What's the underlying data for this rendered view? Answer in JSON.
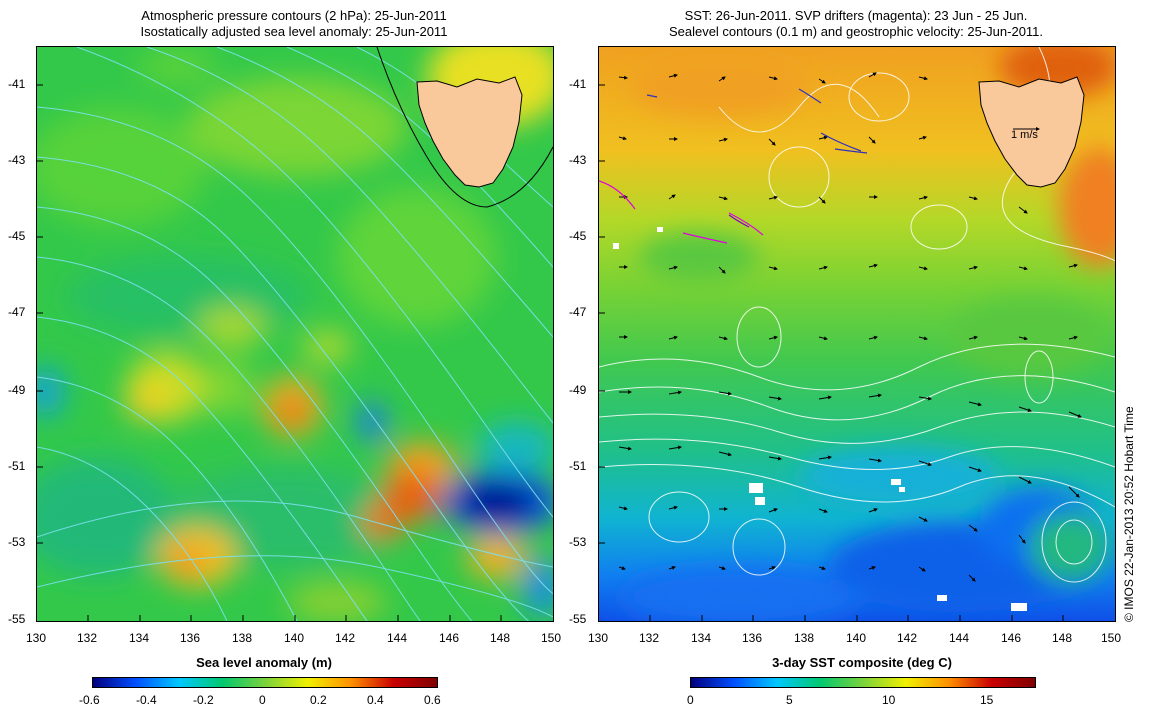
{
  "left_panel": {
    "title_line1": "Atmospheric pressure contours (2 hPa): 25-Jun-2011",
    "title_line2": "Isostatically adjusted sea level anomaly: 25-Jun-2011",
    "colorbar_title": "Sea level anomaly (m)",
    "colorbar_ticks": [
      "-0.6",
      "-0.4",
      "-0.2",
      "0",
      "0.2",
      "0.4",
      "0.6"
    ]
  },
  "right_panel": {
    "title_line1": "SST: 26-Jun-2011. SVP drifters (magenta): 23 Jun - 25 Jun.",
    "title_line2": "Sealevel contours (0.1 m) and geostrophic velocity: 25-Jun-2011.",
    "colorbar_title": "3-day SST composite (deg C)",
    "colorbar_ticks": [
      "0",
      "5",
      "10",
      "15"
    ],
    "scale_arrow_label": "1 m/s"
  },
  "axes": {
    "lat_ticks": [
      "-41",
      "-43",
      "-45",
      "-47",
      "-49",
      "-51",
      "-53",
      "-55"
    ],
    "lon_ticks": [
      "130",
      "132",
      "134",
      "136",
      "138",
      "140",
      "142",
      "144",
      "146",
      "148",
      "150"
    ]
  },
  "credit": "© IMOS 22-Jan-2013 20:52 Hobart Time",
  "colors": {
    "land": "#f9c89b",
    "sla_scale": [
      "#00007f",
      "#0050ff",
      "#00c8ff",
      "#00c870",
      "#7ad23c",
      "#f0f000",
      "#ff9000",
      "#c80000",
      "#7f0000"
    ],
    "sst_scale": [
      "#00007f",
      "#0050ff",
      "#00c8ff",
      "#00c870",
      "#7ad23c",
      "#f0f000",
      "#ff9000",
      "#c80000",
      "#7f0000"
    ],
    "drifter": "#e000e0"
  }
}
